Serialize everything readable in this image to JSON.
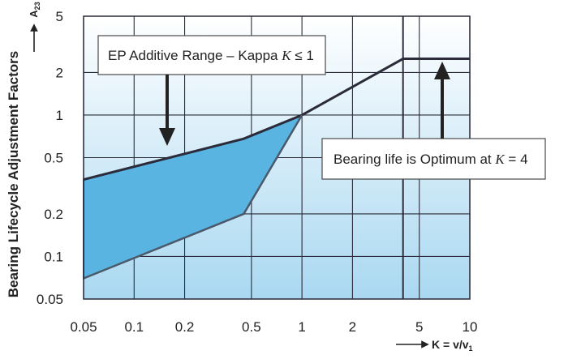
{
  "chart_data": {
    "type": "area",
    "title": "",
    "ylabel": "Bearing Lifecycle Adjustment Factors",
    "ylabel_symbol": "A",
    "ylabel_symbol_sub": "23",
    "xlabel": "K = v/v",
    "xlabel_sub": "1",
    "x_scale": "log",
    "y_scale": "log",
    "xlim": [
      0.05,
      10
    ],
    "ylim": [
      0.05,
      5
    ],
    "grid": true,
    "x_ticks": [
      0.05,
      0.1,
      0.2,
      0.5,
      1,
      2,
      5,
      10
    ],
    "x_tick_labels": [
      "0.05",
      "0.1",
      "0.2",
      "0.5",
      "1",
      "2",
      "5",
      "10"
    ],
    "y_ticks": [
      0.05,
      0.1,
      0.2,
      0.5,
      1,
      2,
      5
    ],
    "y_tick_labels": [
      "0.05",
      "0.1",
      "0.2",
      "0.5",
      "1",
      "2",
      "5"
    ],
    "upper_curve": {
      "x": [
        0.05,
        0.45,
        1,
        4,
        10
      ],
      "y": [
        0.35,
        0.68,
        1,
        2.5,
        2.5
      ]
    },
    "lower_curve": {
      "x": [
        0.05,
        0.45,
        1
      ],
      "y": [
        0.07,
        0.2,
        1
      ]
    },
    "vertical_lines": [
      4
    ],
    "annotations": [
      {
        "name": "ep-additive-range",
        "text_before": "EP Additive Range – Kappa ",
        "symbol": "K",
        "text_after": " ≤ 1"
      },
      {
        "name": "bearing-life-optimum",
        "text_before": "Bearing life is Optimum at ",
        "symbol": "K",
        "text_after": " = 4"
      }
    ],
    "colors": {
      "fill": "#5ab4e2",
      "fill_stroke": "#4a5a6a",
      "curve": "#2b2b3a",
      "grid": "#2b2b3a",
      "background_top": "#ffffff",
      "background_bottom": "#a9d8f1"
    }
  }
}
